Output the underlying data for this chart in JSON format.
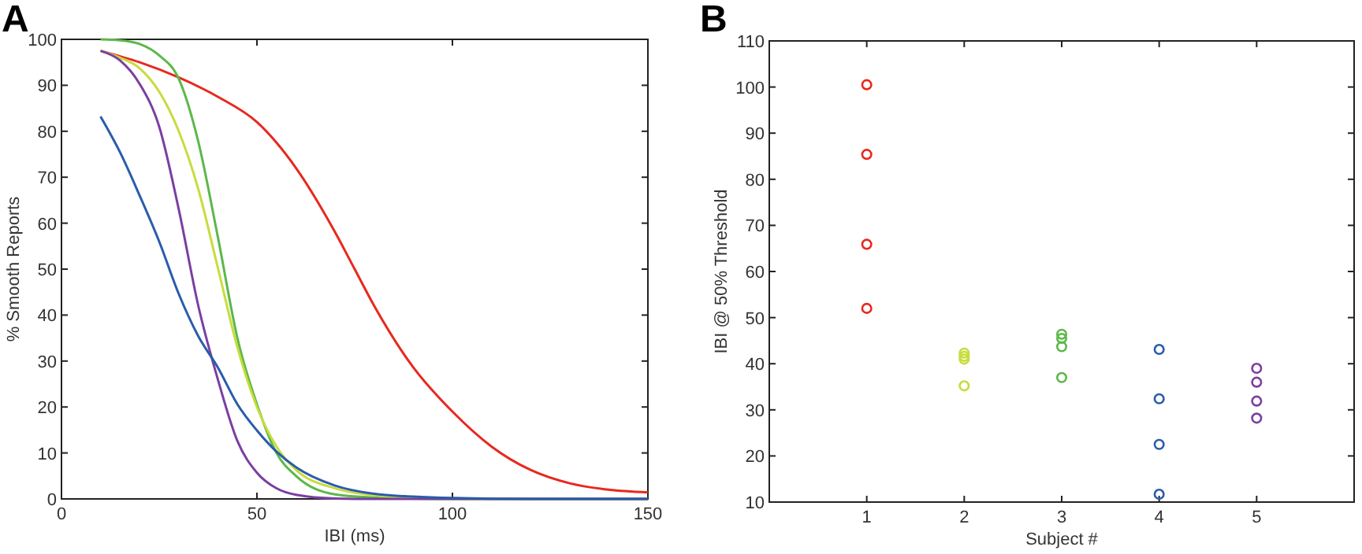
{
  "chart_data": [
    {
      "type": "line",
      "title": "A",
      "xlabel": "IBI (ms)",
      "ylabel": "% Smooth Reports",
      "xlim": [
        0,
        150
      ],
      "ylim": [
        0,
        100
      ],
      "xticks": [
        0,
        50,
        100,
        150
      ],
      "yticks": [
        0,
        10,
        20,
        30,
        40,
        50,
        60,
        70,
        80,
        90,
        100
      ],
      "grid": false,
      "marker": "none",
      "line_style": "solid",
      "series": [
        {
          "color": "#e8281e",
          "x": [
            10,
            20,
            30,
            40,
            50,
            60,
            70,
            75,
            80,
            90,
            100,
            110,
            120,
            130,
            140,
            150
          ],
          "values": [
            97.5,
            95,
            91.7,
            87.5,
            82,
            72,
            58,
            50,
            42,
            28.6,
            19,
            11.4,
            6.3,
            3.4,
            2,
            1.4
          ]
        },
        {
          "color": "#5cb84a",
          "x": [
            10,
            15,
            20,
            25,
            30,
            35,
            40,
            45,
            50,
            55,
            60,
            70,
            80,
            90,
            100,
            150
          ],
          "values": [
            100,
            99.8,
            99,
            96.5,
            91.4,
            77.7,
            57,
            35,
            20.6,
            10,
            5,
            1,
            0.3,
            0.1,
            0,
            0
          ]
        },
        {
          "color": "#c8dc3c",
          "x": [
            10,
            15,
            20,
            25,
            30,
            35,
            40,
            45,
            50,
            55,
            60,
            70,
            80,
            90,
            100,
            150
          ],
          "values": [
            97.5,
            96,
            93.7,
            88.6,
            80,
            67.4,
            50.3,
            33,
            20,
            11.4,
            6.3,
            2.3,
            0.8,
            0.2,
            0,
            0
          ]
        },
        {
          "color": "#7b3fa0",
          "x": [
            10,
            15,
            20,
            25,
            30,
            35,
            40,
            45,
            50,
            55,
            60,
            70,
            80,
            100,
            150
          ],
          "values": [
            97.5,
            95.4,
            90.3,
            81,
            63,
            42,
            26,
            12.6,
            5.7,
            2.3,
            0.9,
            0.1,
            0,
            0,
            0
          ]
        },
        {
          "color": "#2a5caa",
          "x": [
            10,
            15,
            20,
            25,
            30,
            35,
            40,
            45,
            50,
            55,
            60,
            70,
            80,
            90,
            100,
            120,
            150
          ],
          "values": [
            83.2,
            75.4,
            66,
            56,
            44.6,
            35.4,
            28.6,
            20.6,
            14.9,
            10.3,
            6.9,
            2.9,
            1.1,
            0.5,
            0.2,
            0,
            0
          ]
        }
      ]
    },
    {
      "type": "scatter",
      "title": "B",
      "xlabel": "Subject #",
      "ylabel": "IBI @ 50% Threshold",
      "xlim": [
        0,
        6
      ],
      "ylim": [
        10,
        110
      ],
      "xticks": [
        1,
        2,
        3,
        4,
        5
      ],
      "yticks": [
        10,
        20,
        30,
        40,
        50,
        60,
        70,
        80,
        90,
        100,
        110
      ],
      "grid": false,
      "marker": "circle",
      "series": [
        {
          "color": "#e8281e",
          "x": [
            1,
            1,
            1,
            1
          ],
          "values": [
            100.5,
            85.4,
            65.9,
            52
          ]
        },
        {
          "color": "#c8dc3c",
          "x": [
            2,
            2,
            2,
            2
          ],
          "values": [
            42.3,
            41.6,
            41,
            35.2
          ]
        },
        {
          "color": "#5cb84a",
          "x": [
            3,
            3,
            3,
            3
          ],
          "values": [
            46.4,
            45.5,
            43.7,
            37
          ]
        },
        {
          "color": "#2a5caa",
          "x": [
            4,
            4,
            4,
            4
          ],
          "values": [
            43.1,
            32.4,
            22.5,
            11.7
          ]
        },
        {
          "color": "#7b3fa0",
          "x": [
            5,
            5,
            5,
            5
          ],
          "values": [
            39,
            36,
            31.9,
            28.2
          ]
        }
      ]
    }
  ]
}
